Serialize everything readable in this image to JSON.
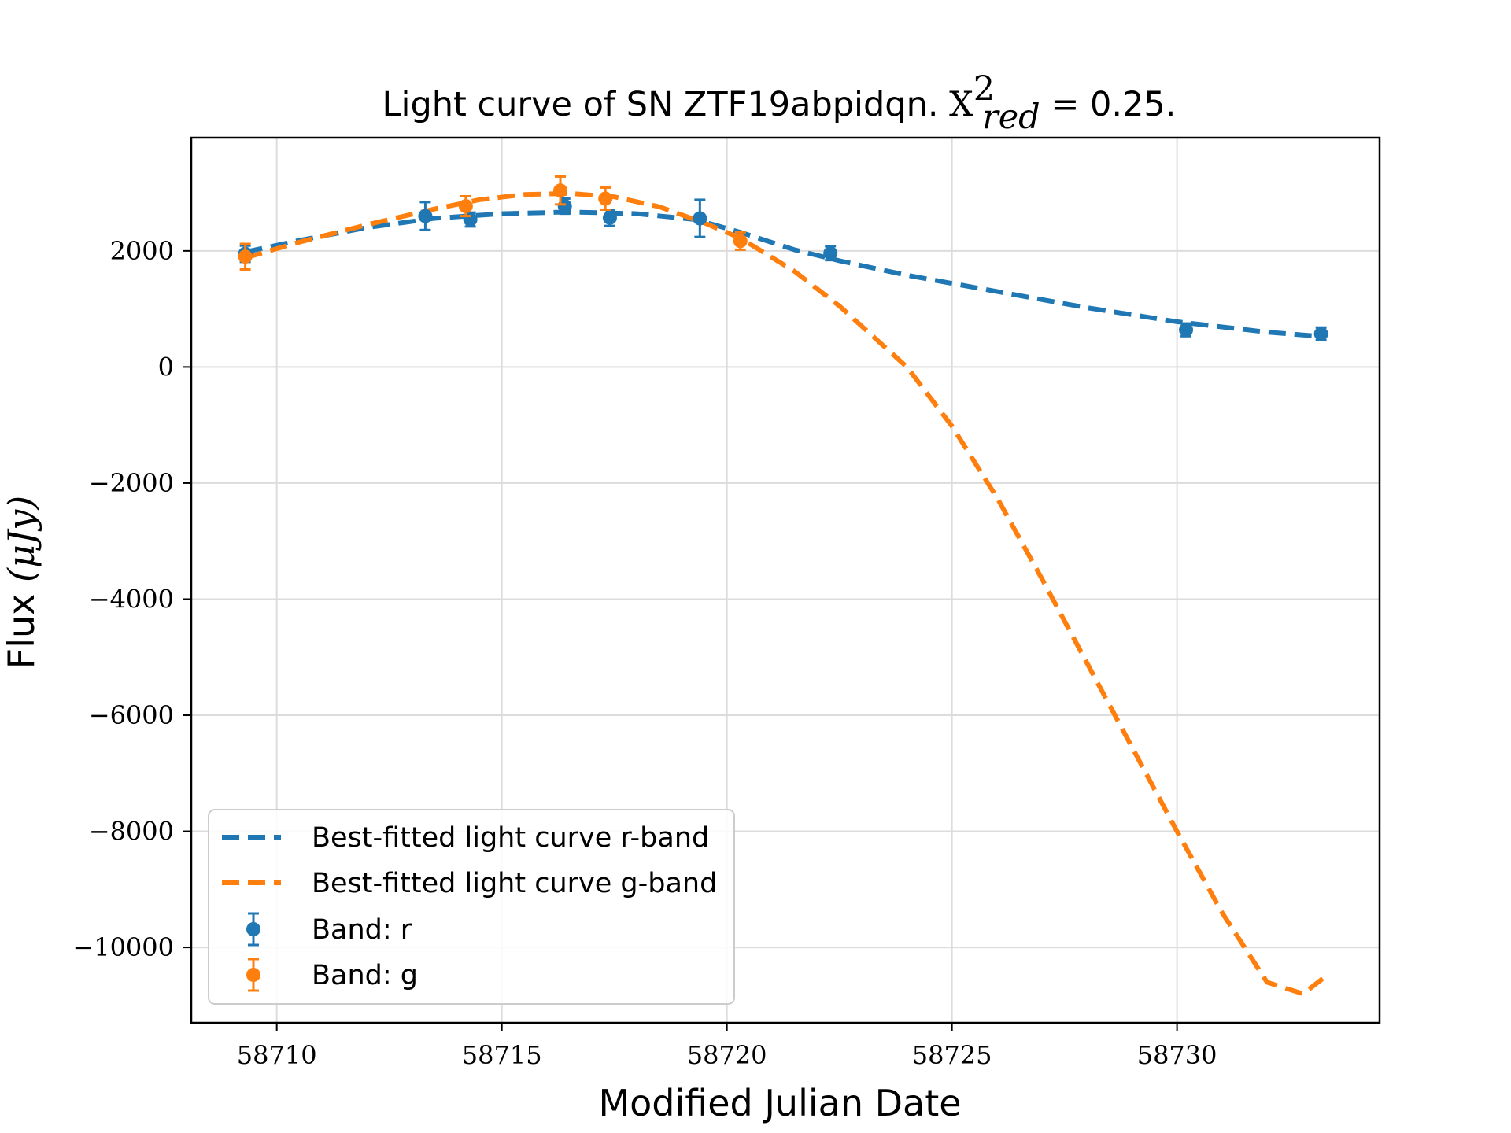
{
  "chart_data": {
    "type": "line",
    "title": {
      "prefix": "Light curve of SN ZTF19abpidqn. ",
      "chi_symbol": "X",
      "chi_sup": "2",
      "chi_sub": "red",
      "value_text": " = 0.25."
    },
    "xlabel": "Modified Julian Date",
    "ylabel": {
      "text": "Flux ",
      "unit": "(μJy)"
    },
    "xlim": [
      58708.1,
      58734.5
    ],
    "ylim": [
      -11300,
      3950
    ],
    "xticks": [
      {
        "value": 58710,
        "label": "58710"
      },
      {
        "value": 58715,
        "label": "58715"
      },
      {
        "value": 58720,
        "label": "58720"
      },
      {
        "value": 58725,
        "label": "58725"
      },
      {
        "value": 58730,
        "label": "58730"
      }
    ],
    "yticks": [
      {
        "value": 2000,
        "label": "2000"
      },
      {
        "value": 0,
        "label": "0"
      },
      {
        "value": -2000,
        "label": "−2000"
      },
      {
        "value": -4000,
        "label": "−4000"
      },
      {
        "value": -6000,
        "label": "−6000"
      },
      {
        "value": -8000,
        "label": "−8000"
      },
      {
        "value": -10000,
        "label": "−10000"
      }
    ],
    "grid": true,
    "legend_position": "lower-left",
    "series": [
      {
        "name": "Best-fitted light curve r-band",
        "kind": "fit",
        "color": "#1f77b4",
        "x": [
          58709.3,
          58710.5,
          58712,
          58713.5,
          58715,
          58716.5,
          58718,
          58719.3,
          58720.3,
          58721.5,
          58722.5,
          58724,
          58726,
          58728,
          58730,
          58732,
          58733.3
        ],
        "y": [
          1980,
          2180,
          2400,
          2560,
          2640,
          2670,
          2640,
          2540,
          2320,
          2020,
          1830,
          1580,
          1300,
          1020,
          780,
          600,
          520
        ]
      },
      {
        "name": "Best-fitted light curve g-band",
        "kind": "fit",
        "color": "#ff7f0e",
        "x": [
          58709.3,
          58710.5,
          58712,
          58713.5,
          58714.5,
          58715.5,
          58716.5,
          58717.5,
          58718.5,
          58719.5,
          58720.3,
          58721.5,
          58722.5,
          58724,
          58725,
          58726,
          58727,
          58728,
          58729,
          58730,
          58731,
          58732,
          58732.8,
          58733.3
        ],
        "y": [
          1880,
          2150,
          2450,
          2720,
          2880,
          2970,
          2990,
          2930,
          2760,
          2480,
          2220,
          1650,
          1050,
          0,
          -1020,
          -2250,
          -3650,
          -5100,
          -6550,
          -8000,
          -9400,
          -10600,
          -10800,
          -10500
        ]
      },
      {
        "name": "Band: r",
        "kind": "points",
        "color": "#1f77b4",
        "x": [
          58709.3,
          58713.3,
          58714.3,
          58716.4,
          58717.4,
          58719.4,
          58722.3,
          58730.2,
          58733.2
        ],
        "y": [
          1950,
          2600,
          2540,
          2770,
          2570,
          2560,
          1960,
          640,
          570
        ],
        "err": [
          140,
          240,
          120,
          130,
          140,
          320,
          120,
          110,
          110
        ]
      },
      {
        "name": "Band: g",
        "kind": "points",
        "color": "#ff7f0e",
        "x": [
          58709.3,
          58714.2,
          58716.3,
          58717.3,
          58720.3
        ],
        "y": [
          1900,
          2770,
          3040,
          2900,
          2170
        ]
      }
    ],
    "g_points_err": [
      220,
      170,
      240,
      190,
      150
    ]
  }
}
